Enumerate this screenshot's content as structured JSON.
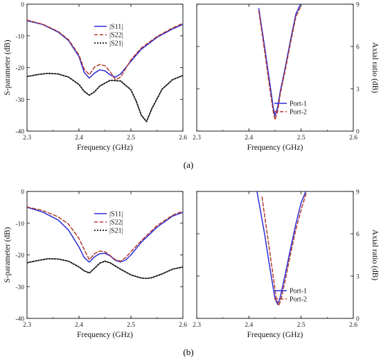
{
  "colors": {
    "s11": "#2b2bd6",
    "s22": "#b03a2e",
    "s21": "#111111",
    "port1": "#2b2bd6",
    "port2": "#b03a2e"
  },
  "captions": {
    "a": "(a)",
    "b": "(b)"
  },
  "chart_data": [
    {
      "type": "line",
      "panel": "a-left",
      "xlabel": "Frequency (GHz)",
      "ylabel": "S-parameter (dB)",
      "xlim": [
        2.3,
        2.6
      ],
      "ylim": [
        -40,
        0
      ],
      "xticks": [
        "2.3",
        "2.4",
        "2.5",
        "2.6"
      ],
      "yticks": [
        "0",
        "-10",
        "-20",
        "-30",
        "-40"
      ],
      "legend": "top-center",
      "series": [
        {
          "name": "|S11|",
          "key": "s11",
          "style": "solid",
          "x": [
            2.3,
            2.33,
            2.36,
            2.38,
            2.4,
            2.41,
            2.42,
            2.43,
            2.44,
            2.45,
            2.46,
            2.47,
            2.48,
            2.5,
            2.52,
            2.55,
            2.58,
            2.6
          ],
          "y": [
            -5.2,
            -6.4,
            -8.8,
            -11.5,
            -16.5,
            -21.5,
            -23.3,
            -21.7,
            -20.7,
            -21.0,
            -22.3,
            -23.0,
            -22.0,
            -18,
            -14.2,
            -10.5,
            -7.8,
            -6.4
          ]
        },
        {
          "name": "|S22|",
          "key": "s22",
          "style": "dashed",
          "x": [
            2.3,
            2.33,
            2.36,
            2.38,
            2.4,
            2.41,
            2.42,
            2.43,
            2.44,
            2.45,
            2.46,
            2.47,
            2.48,
            2.5,
            2.52,
            2.55,
            2.58,
            2.6
          ],
          "y": [
            -5.0,
            -6.3,
            -8.6,
            -11.2,
            -16.0,
            -20.5,
            -22.2,
            -19.8,
            -19.0,
            -19.4,
            -21.3,
            -23.8,
            -23.0,
            -17.5,
            -13.8,
            -10.2,
            -7.5,
            -6.0
          ]
        },
        {
          "name": "|S21|",
          "key": "s21",
          "style": "dotted",
          "x": [
            2.3,
            2.32,
            2.34,
            2.36,
            2.38,
            2.4,
            2.41,
            2.42,
            2.43,
            2.44,
            2.46,
            2.48,
            2.5,
            2.51,
            2.52,
            2.53,
            2.54,
            2.56,
            2.58,
            2.6
          ],
          "y": [
            -22.8,
            -22.2,
            -21.8,
            -22.0,
            -23.0,
            -25.3,
            -27.5,
            -28.7,
            -27.6,
            -25.8,
            -24.0,
            -24.2,
            -27.0,
            -30.5,
            -35.0,
            -37.0,
            -33.0,
            -26.8,
            -23.8,
            -22.5
          ]
        }
      ]
    },
    {
      "type": "line",
      "panel": "a-right",
      "xlabel": "Frequency (GHz)",
      "ylabel": "Axial ratio (dB)",
      "xlim": [
        2.3,
        2.6
      ],
      "ylim": [
        0,
        9
      ],
      "xticks": [
        "2.3",
        "2.4",
        "2.5",
        "2.6"
      ],
      "yticks": [
        "9",
        "6",
        "3",
        "0"
      ],
      "legend": "bottom-right",
      "series": [
        {
          "name": "Port-1",
          "key": "port1",
          "style": "solid",
          "x": [
            2.419,
            2.43,
            2.44,
            2.447,
            2.45,
            2.455,
            2.46,
            2.47,
            2.48,
            2.49,
            2.5
          ],
          "y": [
            8.7,
            6.0,
            3.4,
            1.6,
            1.1,
            1.7,
            2.8,
            4.6,
            6.5,
            8.3,
            9.1
          ]
        },
        {
          "name": "Port-2",
          "key": "port2",
          "style": "dashed",
          "x": [
            2.419,
            2.43,
            2.44,
            2.447,
            2.45,
            2.455,
            2.46,
            2.47,
            2.48,
            2.49,
            2.5
          ],
          "y": [
            8.5,
            5.7,
            3.0,
            1.3,
            0.8,
            1.4,
            2.6,
            4.4,
            6.3,
            8.1,
            8.9
          ]
        }
      ]
    },
    {
      "type": "line",
      "panel": "b-left",
      "xlabel": "Frequency (GHz)",
      "ylabel": "S-parameter (dB)",
      "xlim": [
        2.3,
        2.6
      ],
      "ylim": [
        -40,
        0
      ],
      "xticks": [
        "2.3",
        "2.4",
        "2.5",
        "2.6"
      ],
      "yticks": [
        "0",
        "-10",
        "-20",
        "-30",
        "-40"
      ],
      "legend": "top-center",
      "series": [
        {
          "name": "|S11|",
          "key": "s11",
          "style": "solid",
          "x": [
            2.3,
            2.33,
            2.36,
            2.38,
            2.4,
            2.41,
            2.42,
            2.43,
            2.44,
            2.45,
            2.46,
            2.47,
            2.48,
            2.49,
            2.5,
            2.52,
            2.55,
            2.58,
            2.6
          ],
          "y": [
            -5.0,
            -6.5,
            -9.0,
            -12.2,
            -17.5,
            -20.8,
            -22.3,
            -20.6,
            -19.6,
            -19.5,
            -20.3,
            -21.7,
            -22.2,
            -21.6,
            -20.0,
            -16.0,
            -11.3,
            -7.8,
            -6.6
          ]
        },
        {
          "name": "|S22|",
          "key": "s22",
          "style": "dashed",
          "x": [
            2.3,
            2.33,
            2.36,
            2.38,
            2.4,
            2.41,
            2.42,
            2.43,
            2.44,
            2.45,
            2.46,
            2.47,
            2.48,
            2.49,
            2.5,
            2.52,
            2.55,
            2.58,
            2.6
          ],
          "y": [
            -4.9,
            -6.0,
            -8.0,
            -10.3,
            -14.8,
            -18.3,
            -21.5,
            -19.6,
            -18.8,
            -19.0,
            -20.2,
            -21.5,
            -22.0,
            -20.8,
            -19.0,
            -15.5,
            -10.8,
            -7.5,
            -6.2
          ]
        },
        {
          "name": "|S21|",
          "key": "s21",
          "style": "dotted",
          "x": [
            2.3,
            2.32,
            2.34,
            2.36,
            2.38,
            2.4,
            2.41,
            2.42,
            2.43,
            2.44,
            2.45,
            2.46,
            2.48,
            2.5,
            2.52,
            2.53,
            2.54,
            2.56,
            2.58,
            2.6
          ],
          "y": [
            -22.5,
            -21.8,
            -21.2,
            -21.3,
            -22.0,
            -23.8,
            -25.0,
            -25.7,
            -24.2,
            -22.6,
            -22.0,
            -22.5,
            -24.5,
            -26.3,
            -27.3,
            -27.4,
            -27.2,
            -26.0,
            -24.5,
            -23.8
          ]
        }
      ]
    },
    {
      "type": "line",
      "panel": "b-right",
      "xlabel": "Frequency (GHz)",
      "ylabel": "Axial ratio (dB)",
      "xlim": [
        2.3,
        2.6
      ],
      "ylim": [
        0,
        9
      ],
      "xticks": [
        "2.3",
        "2.4",
        "2.5",
        "2.6"
      ],
      "yticks": [
        "9",
        "6",
        "3",
        "0"
      ],
      "legend": "bottom-right",
      "series": [
        {
          "name": "Port-1",
          "key": "port1",
          "style": "solid",
          "x": [
            2.415,
            2.43,
            2.44,
            2.45,
            2.455,
            2.46,
            2.47,
            2.48,
            2.49,
            2.5,
            2.51
          ],
          "y": [
            9.1,
            6.0,
            3.6,
            1.4,
            1.0,
            1.5,
            3.2,
            5.0,
            6.7,
            8.2,
            9.1
          ]
        },
        {
          "name": "Port-2",
          "key": "port2",
          "style": "dashed",
          "x": [
            2.425,
            2.435,
            2.445,
            2.452,
            2.457,
            2.462,
            2.47,
            2.48,
            2.49,
            2.5,
            2.51
          ],
          "y": [
            8.6,
            6.0,
            3.4,
            1.5,
            0.9,
            1.4,
            2.8,
            4.6,
            6.3,
            7.7,
            8.9
          ]
        }
      ]
    }
  ]
}
